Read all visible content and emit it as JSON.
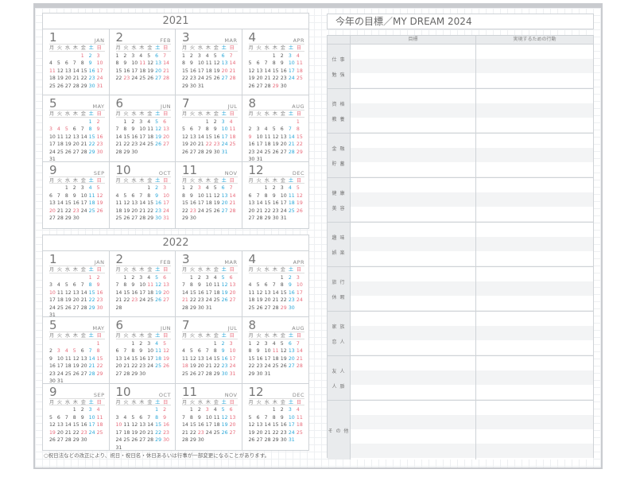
{
  "weekdays": [
    "月",
    "火",
    "水",
    "木",
    "金",
    "土",
    "日"
  ],
  "calendars": [
    {
      "year": "2021",
      "months": [
        {
          "num": "1",
          "abbr": "JAN",
          "start": 4,
          "days": 31,
          "holidays": [
            1,
            11
          ]
        },
        {
          "num": "2",
          "abbr": "FEB",
          "start": 0,
          "days": 28,
          "holidays": [
            11,
            23
          ]
        },
        {
          "num": "3",
          "abbr": "MAR",
          "start": 0,
          "days": 31,
          "holidays": [
            20
          ]
        },
        {
          "num": "4",
          "abbr": "APR",
          "start": 3,
          "days": 30,
          "holidays": [
            29
          ]
        },
        {
          "num": "5",
          "abbr": "MAY",
          "start": 5,
          "days": 31,
          "holidays": [
            3,
            4,
            5
          ]
        },
        {
          "num": "6",
          "abbr": "JUN",
          "start": 1,
          "days": 30,
          "holidays": []
        },
        {
          "num": "7",
          "abbr": "JUL",
          "start": 3,
          "days": 31,
          "holidays": [
            22,
            23
          ]
        },
        {
          "num": "8",
          "abbr": "AUG",
          "start": 6,
          "days": 31,
          "holidays": [
            9
          ]
        },
        {
          "num": "9",
          "abbr": "SEP",
          "start": 2,
          "days": 30,
          "holidays": [
            20,
            23
          ]
        },
        {
          "num": "10",
          "abbr": "OCT",
          "start": 4,
          "days": 31,
          "holidays": []
        },
        {
          "num": "11",
          "abbr": "NOV",
          "start": 0,
          "days": 30,
          "holidays": [
            3,
            23
          ]
        },
        {
          "num": "12",
          "abbr": "DEC",
          "start": 2,
          "days": 31,
          "holidays": []
        }
      ]
    },
    {
      "year": "2022",
      "months": [
        {
          "num": "1",
          "abbr": "JAN",
          "start": 5,
          "days": 31,
          "holidays": [
            1,
            10
          ]
        },
        {
          "num": "2",
          "abbr": "FEB",
          "start": 1,
          "days": 28,
          "holidays": [
            11,
            23
          ]
        },
        {
          "num": "3",
          "abbr": "MAR",
          "start": 1,
          "days": 31,
          "holidays": [
            21
          ]
        },
        {
          "num": "4",
          "abbr": "APR",
          "start": 4,
          "days": 30,
          "holidays": [
            29
          ]
        },
        {
          "num": "5",
          "abbr": "MAY",
          "start": 6,
          "days": 31,
          "holidays": [
            3,
            4,
            5
          ]
        },
        {
          "num": "6",
          "abbr": "JUN",
          "start": 2,
          "days": 30,
          "holidays": []
        },
        {
          "num": "7",
          "abbr": "JUL",
          "start": 4,
          "days": 31,
          "holidays": [
            18
          ]
        },
        {
          "num": "8",
          "abbr": "AUG",
          "start": 0,
          "days": 31,
          "holidays": [
            11
          ]
        },
        {
          "num": "9",
          "abbr": "SEP",
          "start": 3,
          "days": 30,
          "holidays": [
            19,
            23
          ]
        },
        {
          "num": "10",
          "abbr": "OCT",
          "start": 5,
          "days": 31,
          "holidays": [
            10
          ]
        },
        {
          "num": "11",
          "abbr": "NOV",
          "start": 1,
          "days": 30,
          "holidays": [
            3,
            23
          ]
        },
        {
          "num": "12",
          "abbr": "DEC",
          "start": 3,
          "days": 31,
          "holidays": []
        }
      ]
    }
  ],
  "footnote": "○祝日法などの改正により、祝日・祝日名・休日あるいは行事が一部変更になることがあります。",
  "goals": {
    "title": "今年の目標／MY DREAM 2024",
    "col_goal": "目標",
    "col_action": "実現するための行動",
    "sections": [
      [
        "仕 事",
        "勉 強"
      ],
      [
        "資 格",
        "教 養"
      ],
      [
        "金 融",
        "貯 蓄"
      ],
      [
        "健 康",
        "美 容"
      ],
      [
        "趣 味",
        "娯 楽"
      ],
      [
        "旅 行",
        "休 暇"
      ],
      [
        "家 族",
        "恋 人"
      ],
      [
        "友 人",
        "人 脈"
      ],
      [
        "そ の 他"
      ]
    ]
  },
  "colors": {
    "saturday": "#2aa7d8",
    "sunday_holiday": "#e86a7a"
  }
}
